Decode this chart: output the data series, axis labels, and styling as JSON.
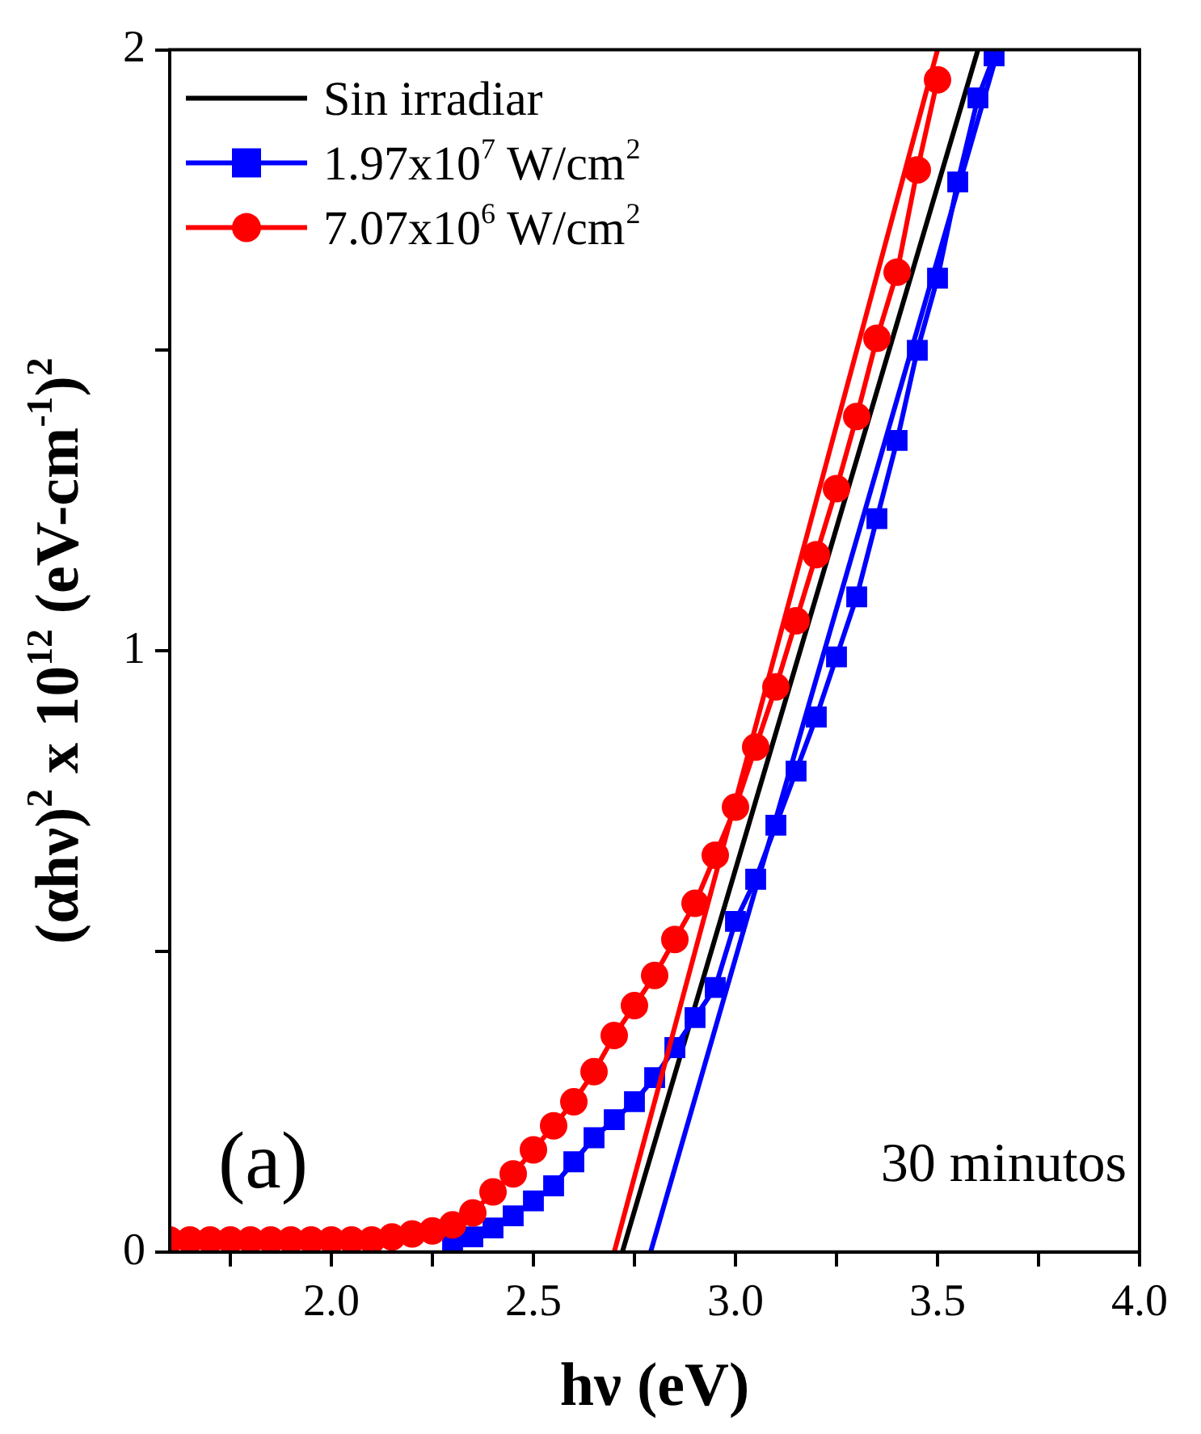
{
  "chart_data": {
    "type": "line",
    "xlabel": "hν (eV)",
    "ylabel": "(αhν)$^{2}$ x 10$^{12}$ (eV-cm$^{-1}$)$^{2}$",
    "xlim": [
      1.6,
      4.0
    ],
    "xticks": [
      {
        "value": 1.75,
        "label": null
      },
      {
        "value": 2.0,
        "label": "2.0"
      },
      {
        "value": 2.25,
        "label": null
      },
      {
        "value": 2.5,
        "label": "2.5"
      },
      {
        "value": 2.75,
        "label": null
      },
      {
        "value": 3.0,
        "label": "3.0"
      },
      {
        "value": 3.25,
        "label": null
      },
      {
        "value": 3.5,
        "label": "3.5"
      },
      {
        "value": 3.75,
        "label": null
      },
      {
        "value": 4.0,
        "label": "4.0"
      }
    ],
    "ylim": [
      0,
      2
    ],
    "yticks": [
      0,
      {
        "value": 0.5,
        "label": null
      },
      1,
      {
        "value": 1.5,
        "label": null
      },
      2
    ],
    "grid": false,
    "legend": "top left",
    "annotations": [
      "(a)",
      "30 minutos"
    ],
    "series": [
      {
        "name": "Sin irradiar",
        "color": "#000000",
        "marker": "none",
        "x": [
          2.72,
          3.6
        ],
        "values": [
          0,
          2
        ]
      },
      {
        "name": "1.97x10$^{7}$ W/cm$^{2}$",
        "color": "#0000ff",
        "marker": "square",
        "x": [
          2.3,
          2.35,
          2.4,
          2.45,
          2.5,
          2.55,
          2.6,
          2.65,
          2.7,
          2.75,
          2.8,
          2.85,
          2.9,
          2.95,
          3.0,
          3.05,
          3.1,
          3.15,
          3.2,
          3.25,
          3.3,
          3.35,
          3.4,
          3.45,
          3.5,
          3.55,
          3.6,
          3.64
        ],
        "values": [
          0.015,
          0.025,
          0.04,
          0.06,
          0.085,
          0.11,
          0.15,
          0.19,
          0.22,
          0.25,
          0.29,
          0.34,
          0.39,
          0.44,
          0.55,
          0.62,
          0.71,
          0.8,
          0.89,
          0.99,
          1.09,
          1.22,
          1.35,
          1.5,
          1.62,
          1.78,
          1.92,
          1.99
        ]
      },
      {
        "name": "7.07x10$^{6}$ W/cm$^{2}$",
        "color": "#ff0000",
        "marker": "circle",
        "x": [
          1.6,
          1.65,
          1.7,
          1.75,
          1.8,
          1.85,
          1.9,
          1.95,
          2.0,
          2.05,
          2.1,
          2.15,
          2.2,
          2.25,
          2.3,
          2.35,
          2.4,
          2.45,
          2.5,
          2.55,
          2.6,
          2.65,
          2.7,
          2.75,
          2.8,
          2.85,
          2.9,
          2.95,
          3.0,
          3.05,
          3.1,
          3.15,
          3.2,
          3.25,
          3.3,
          3.35,
          3.4,
          3.45,
          3.5
        ],
        "values": [
          0.02,
          0.02,
          0.02,
          0.02,
          0.02,
          0.02,
          0.02,
          0.02,
          0.02,
          0.02,
          0.02,
          0.025,
          0.03,
          0.035,
          0.045,
          0.065,
          0.1,
          0.13,
          0.17,
          0.21,
          0.25,
          0.3,
          0.36,
          0.41,
          0.46,
          0.52,
          0.58,
          0.66,
          0.74,
          0.84,
          0.94,
          1.05,
          1.16,
          1.27,
          1.39,
          1.52,
          1.63,
          1.8,
          1.95
        ]
      },
      {
        "color": "#0000ff",
        "marker": "none",
        "x": [
          2.79,
          3.65
        ],
        "values": [
          0,
          2
        ]
      },
      {
        "color": "#ff0000",
        "marker": "none",
        "x": [
          2.7,
          3.5
        ],
        "values": [
          0,
          2
        ]
      }
    ]
  }
}
